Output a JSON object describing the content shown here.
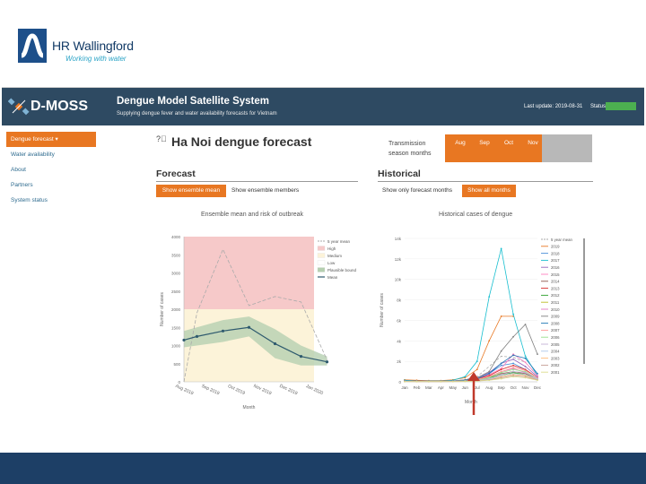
{
  "branding": {
    "company_name": "HR Wallingford",
    "company_tagline": "Working with water",
    "app_logo_text": "D-MOSS",
    "app_title": "Dengue Model Satellite System",
    "app_subtitle": "Supplying dengue fever and water availability forecasts for Vietnam",
    "last_update": "Last update: 2019-08-31",
    "status_label": "Status:",
    "colors": {
      "header": "#2e4a62",
      "accent": "#e87722",
      "status_ok": "#4caf50",
      "footer": "#1d3f66"
    }
  },
  "nav": {
    "items": [
      {
        "label": "Dengue forecast ▾",
        "active": true
      },
      {
        "label": "Water availability",
        "active": false
      },
      {
        "label": "About",
        "active": false
      },
      {
        "label": "Partners",
        "active": false
      },
      {
        "label": "System status",
        "active": false
      }
    ]
  },
  "page": {
    "title": "Ha Noi dengue forecast",
    "help_icon": "help-circle-icon",
    "transmission_label": "Transmission season months",
    "months": [
      "Aug",
      "Sep",
      "Oct",
      "Nov"
    ]
  },
  "forecast": {
    "title": "Forecast",
    "btn_mean": "Show ensemble mean",
    "btn_members": "Show ensemble members",
    "chart_title": "Ensemble mean and risk of outbreak"
  },
  "historical": {
    "title": "Historical",
    "btn_forecast_months": "Show only forecast months",
    "btn_all_months": "Show all months",
    "chart_title": "Historical cases of dengue"
  },
  "chart_data": [
    {
      "type": "line",
      "title": "Ensemble mean and risk of outbreak",
      "xlabel": "Month",
      "ylabel": "Number of cases",
      "categories": [
        "Aug 2019",
        "Sep 2019",
        "Oct 2019",
        "Nov 2019",
        "Dec 2019",
        "Jan 2020"
      ],
      "ylim": [
        0,
        4000
      ],
      "yticks": [
        "0",
        "500",
        "1000",
        "1500",
        "2000",
        "2500",
        "3000",
        "3500",
        "4000"
      ],
      "bands": [
        {
          "name": "High",
          "from": 2000,
          "to": 4000,
          "color": "#f6c9c9"
        },
        {
          "name": "Medium",
          "from": 0,
          "to": 2000,
          "color": "#fcf3d9"
        }
      ],
      "legend": [
        "5 year mean",
        "High",
        "Medium",
        "Low",
        "Plausible bound",
        "Mean"
      ],
      "legend_extra": "Plausible bound",
      "series": [
        {
          "name": "5 year mean",
          "style": "dashed",
          "color": "#aaaaaa",
          "x": [
            0,
            0.5,
            1.5,
            2.5,
            3.5,
            4.5,
            5.5
          ],
          "values": [
            0,
            1900,
            3650,
            2100,
            2350,
            2200,
            600
          ]
        },
        {
          "name": "Mean",
          "style": "solid",
          "color": "#2e5a6e",
          "x": [
            0,
            0.5,
            1.5,
            2.5,
            3.5,
            4.5,
            5.5
          ],
          "values": [
            1150,
            1250,
            1400,
            1500,
            1050,
            700,
            550
          ]
        },
        {
          "name": "Plausible bound",
          "style": "band",
          "color": "#b5cfb0",
          "x": [
            0,
            1.5,
            2.5,
            3.5,
            4.5,
            5.5
          ],
          "upper": [
            1400,
            1700,
            1800,
            1450,
            1000,
            700
          ],
          "lower": [
            950,
            1100,
            1250,
            650,
            450,
            450
          ]
        }
      ]
    },
    {
      "type": "line",
      "title": "Historical cases of dengue",
      "xlabel": "Month",
      "ylabel": "Number of cases",
      "categories": [
        "Jan",
        "Feb",
        "Mar",
        "Apr",
        "May",
        "Jun",
        "Jul",
        "Aug",
        "Sep",
        "Oct",
        "Nov",
        "Dec"
      ],
      "ylim": [
        0,
        14000
      ],
      "yticks": [
        "0",
        "2k",
        "4k",
        "6k",
        "8k",
        "10k",
        "12k",
        "14k"
      ],
      "legend": [
        "5 year mean",
        "2019",
        "2018",
        "2017",
        "2016",
        "2015",
        "2014",
        "2013",
        "2012",
        "2011",
        "2010",
        "2009",
        "2008",
        "2007",
        "2006",
        "2005",
        "2004",
        "2003",
        "2002",
        "2001"
      ],
      "series": [
        {
          "name": "5 year mean",
          "color": "#aaaaaa",
          "dashed": true,
          "values": [
            100,
            80,
            60,
            60,
            80,
            200,
            500,
            1500,
            2500,
            2400,
            1900,
            600
          ]
        },
        {
          "name": "2019",
          "color": "#e87722",
          "values": [
            200,
            150,
            120,
            120,
            200,
            400,
            1200,
            4000,
            6400,
            6400,
            0,
            0
          ]
        },
        {
          "name": "2018",
          "color": "#4a90d9",
          "values": [
            100,
            80,
            60,
            60,
            80,
            150,
            300,
            800,
            1600,
            1800,
            1200,
            400
          ]
        },
        {
          "name": "2017",
          "color": "#17becf",
          "values": [
            150,
            100,
            80,
            80,
            150,
            500,
            2000,
            8300,
            13000,
            6600,
            2500,
            600
          ]
        },
        {
          "name": "2016",
          "color": "#9467bd",
          "values": [
            100,
            80,
            60,
            60,
            80,
            200,
            400,
            900,
            1800,
            2200,
            1500,
            500
          ]
        },
        {
          "name": "2015",
          "color": "#ff7fbf",
          "values": [
            80,
            60,
            50,
            50,
            60,
            150,
            300,
            700,
            1300,
            2700,
            1900,
            600
          ]
        },
        {
          "name": "2014",
          "color": "#8c564b",
          "values": [
            60,
            50,
            40,
            40,
            50,
            100,
            200,
            500,
            800,
            1000,
            800,
            300
          ]
        },
        {
          "name": "2013",
          "color": "#d62728",
          "values": [
            80,
            60,
            50,
            50,
            60,
            120,
            300,
            600,
            1200,
            1600,
            1200,
            400
          ]
        },
        {
          "name": "2012",
          "color": "#2ca02c",
          "values": [
            60,
            50,
            40,
            40,
            50,
            100,
            200,
            400,
            700,
            900,
            700,
            300
          ]
        },
        {
          "name": "2011",
          "color": "#bcbd22",
          "values": [
            50,
            40,
            30,
            30,
            40,
            80,
            150,
            300,
            600,
            800,
            700,
            300
          ]
        },
        {
          "name": "2010",
          "color": "#e377c2",
          "values": [
            60,
            50,
            40,
            40,
            50,
            100,
            200,
            500,
            1000,
            1300,
            900,
            300
          ]
        },
        {
          "name": "2009",
          "color": "#7f7f7f",
          "values": [
            100,
            80,
            60,
            60,
            80,
            200,
            400,
            1000,
            3000,
            4400,
            5600,
            2700
          ]
        },
        {
          "name": "2008",
          "color": "#1f77b4",
          "values": [
            80,
            60,
            50,
            50,
            60,
            150,
            300,
            800,
            1800,
            2600,
            2300,
            800
          ]
        },
        {
          "name": "2007",
          "color": "#ff9896",
          "values": [
            60,
            50,
            40,
            40,
            50,
            100,
            200,
            500,
            1000,
            1400,
            1100,
            400
          ]
        },
        {
          "name": "2006",
          "color": "#98df8a",
          "values": [
            50,
            40,
            30,
            30,
            40,
            80,
            150,
            400,
            900,
            1200,
            1000,
            300
          ]
        },
        {
          "name": "2005",
          "color": "#c5b0d5",
          "values": [
            40,
            30,
            20,
            20,
            30,
            60,
            120,
            300,
            700,
            1000,
            900,
            300
          ]
        },
        {
          "name": "2004",
          "color": "#aec7e8",
          "values": [
            40,
            30,
            20,
            20,
            30,
            60,
            100,
            250,
            600,
            800,
            700,
            250
          ]
        },
        {
          "name": "2003",
          "color": "#ffbb78",
          "values": [
            30,
            20,
            20,
            20,
            30,
            50,
            100,
            200,
            500,
            700,
            600,
            200
          ]
        },
        {
          "name": "2002",
          "color": "#c49c94",
          "values": [
            30,
            20,
            20,
            20,
            30,
            50,
            80,
            200,
            400,
            600,
            500,
            200
          ]
        },
        {
          "name": "2001",
          "color": "#dbdb8d",
          "values": [
            20,
            20,
            20,
            20,
            20,
            40,
            80,
            150,
            300,
            500,
            400,
            150
          ]
        }
      ]
    }
  ]
}
